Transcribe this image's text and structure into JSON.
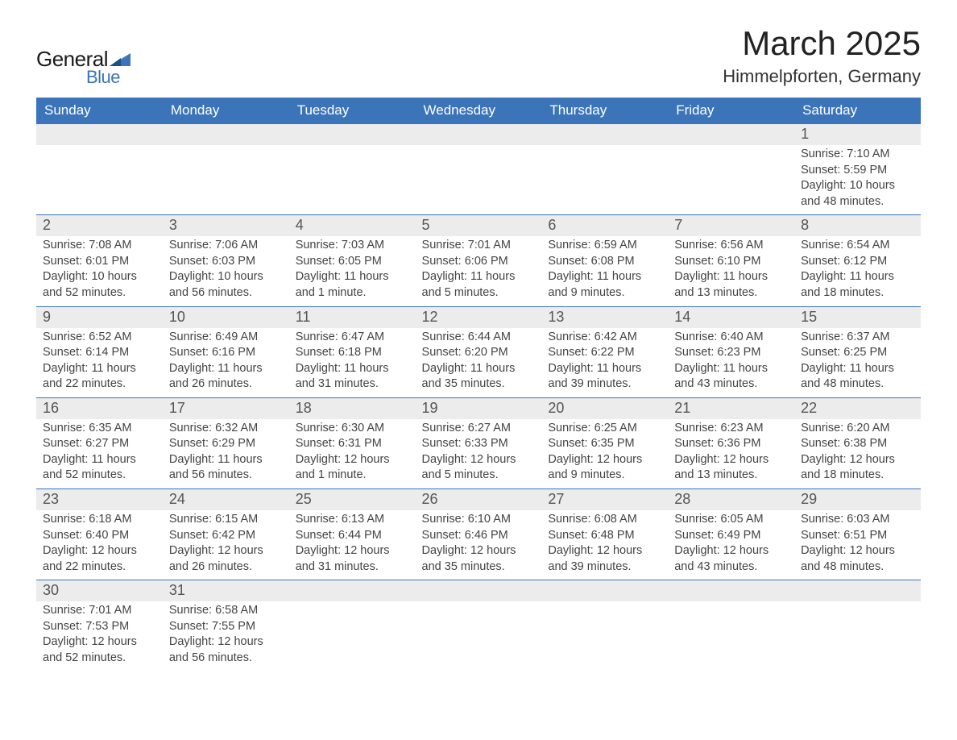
{
  "logo": {
    "text1": "General",
    "text2": "Blue"
  },
  "title": "March 2025",
  "subtitle": "Himmelpforten, Germany",
  "colors": {
    "header_bg": "#3b74b9",
    "daynum_bg": "#ececec",
    "row_border": "#3b74b9",
    "text": "#444444",
    "title": "#222222"
  },
  "weekdays": [
    "Sunday",
    "Monday",
    "Tuesday",
    "Wednesday",
    "Thursday",
    "Friday",
    "Saturday"
  ],
  "weeks": [
    [
      null,
      null,
      null,
      null,
      null,
      null,
      {
        "n": "1",
        "sunrise": "7:10 AM",
        "sunset": "5:59 PM",
        "daylight": "10 hours and 48 minutes."
      }
    ],
    [
      {
        "n": "2",
        "sunrise": "7:08 AM",
        "sunset": "6:01 PM",
        "daylight": "10 hours and 52 minutes."
      },
      {
        "n": "3",
        "sunrise": "7:06 AM",
        "sunset": "6:03 PM",
        "daylight": "10 hours and 56 minutes."
      },
      {
        "n": "4",
        "sunrise": "7:03 AM",
        "sunset": "6:05 PM",
        "daylight": "11 hours and 1 minute."
      },
      {
        "n": "5",
        "sunrise": "7:01 AM",
        "sunset": "6:06 PM",
        "daylight": "11 hours and 5 minutes."
      },
      {
        "n": "6",
        "sunrise": "6:59 AM",
        "sunset": "6:08 PM",
        "daylight": "11 hours and 9 minutes."
      },
      {
        "n": "7",
        "sunrise": "6:56 AM",
        "sunset": "6:10 PM",
        "daylight": "11 hours and 13 minutes."
      },
      {
        "n": "8",
        "sunrise": "6:54 AM",
        "sunset": "6:12 PM",
        "daylight": "11 hours and 18 minutes."
      }
    ],
    [
      {
        "n": "9",
        "sunrise": "6:52 AM",
        "sunset": "6:14 PM",
        "daylight": "11 hours and 22 minutes."
      },
      {
        "n": "10",
        "sunrise": "6:49 AM",
        "sunset": "6:16 PM",
        "daylight": "11 hours and 26 minutes."
      },
      {
        "n": "11",
        "sunrise": "6:47 AM",
        "sunset": "6:18 PM",
        "daylight": "11 hours and 31 minutes."
      },
      {
        "n": "12",
        "sunrise": "6:44 AM",
        "sunset": "6:20 PM",
        "daylight": "11 hours and 35 minutes."
      },
      {
        "n": "13",
        "sunrise": "6:42 AM",
        "sunset": "6:22 PM",
        "daylight": "11 hours and 39 minutes."
      },
      {
        "n": "14",
        "sunrise": "6:40 AM",
        "sunset": "6:23 PM",
        "daylight": "11 hours and 43 minutes."
      },
      {
        "n": "15",
        "sunrise": "6:37 AM",
        "sunset": "6:25 PM",
        "daylight": "11 hours and 48 minutes."
      }
    ],
    [
      {
        "n": "16",
        "sunrise": "6:35 AM",
        "sunset": "6:27 PM",
        "daylight": "11 hours and 52 minutes."
      },
      {
        "n": "17",
        "sunrise": "6:32 AM",
        "sunset": "6:29 PM",
        "daylight": "11 hours and 56 minutes."
      },
      {
        "n": "18",
        "sunrise": "6:30 AM",
        "sunset": "6:31 PM",
        "daylight": "12 hours and 1 minute."
      },
      {
        "n": "19",
        "sunrise": "6:27 AM",
        "sunset": "6:33 PM",
        "daylight": "12 hours and 5 minutes."
      },
      {
        "n": "20",
        "sunrise": "6:25 AM",
        "sunset": "6:35 PM",
        "daylight": "12 hours and 9 minutes."
      },
      {
        "n": "21",
        "sunrise": "6:23 AM",
        "sunset": "6:36 PM",
        "daylight": "12 hours and 13 minutes."
      },
      {
        "n": "22",
        "sunrise": "6:20 AM",
        "sunset": "6:38 PM",
        "daylight": "12 hours and 18 minutes."
      }
    ],
    [
      {
        "n": "23",
        "sunrise": "6:18 AM",
        "sunset": "6:40 PM",
        "daylight": "12 hours and 22 minutes."
      },
      {
        "n": "24",
        "sunrise": "6:15 AM",
        "sunset": "6:42 PM",
        "daylight": "12 hours and 26 minutes."
      },
      {
        "n": "25",
        "sunrise": "6:13 AM",
        "sunset": "6:44 PM",
        "daylight": "12 hours and 31 minutes."
      },
      {
        "n": "26",
        "sunrise": "6:10 AM",
        "sunset": "6:46 PM",
        "daylight": "12 hours and 35 minutes."
      },
      {
        "n": "27",
        "sunrise": "6:08 AM",
        "sunset": "6:48 PM",
        "daylight": "12 hours and 39 minutes."
      },
      {
        "n": "28",
        "sunrise": "6:05 AM",
        "sunset": "6:49 PM",
        "daylight": "12 hours and 43 minutes."
      },
      {
        "n": "29",
        "sunrise": "6:03 AM",
        "sunset": "6:51 PM",
        "daylight": "12 hours and 48 minutes."
      }
    ],
    [
      {
        "n": "30",
        "sunrise": "7:01 AM",
        "sunset": "7:53 PM",
        "daylight": "12 hours and 52 minutes."
      },
      {
        "n": "31",
        "sunrise": "6:58 AM",
        "sunset": "7:55 PM",
        "daylight": "12 hours and 56 minutes."
      },
      null,
      null,
      null,
      null,
      null
    ]
  ],
  "labels": {
    "sunrise": "Sunrise:",
    "sunset": "Sunset:",
    "daylight": "Daylight:"
  }
}
